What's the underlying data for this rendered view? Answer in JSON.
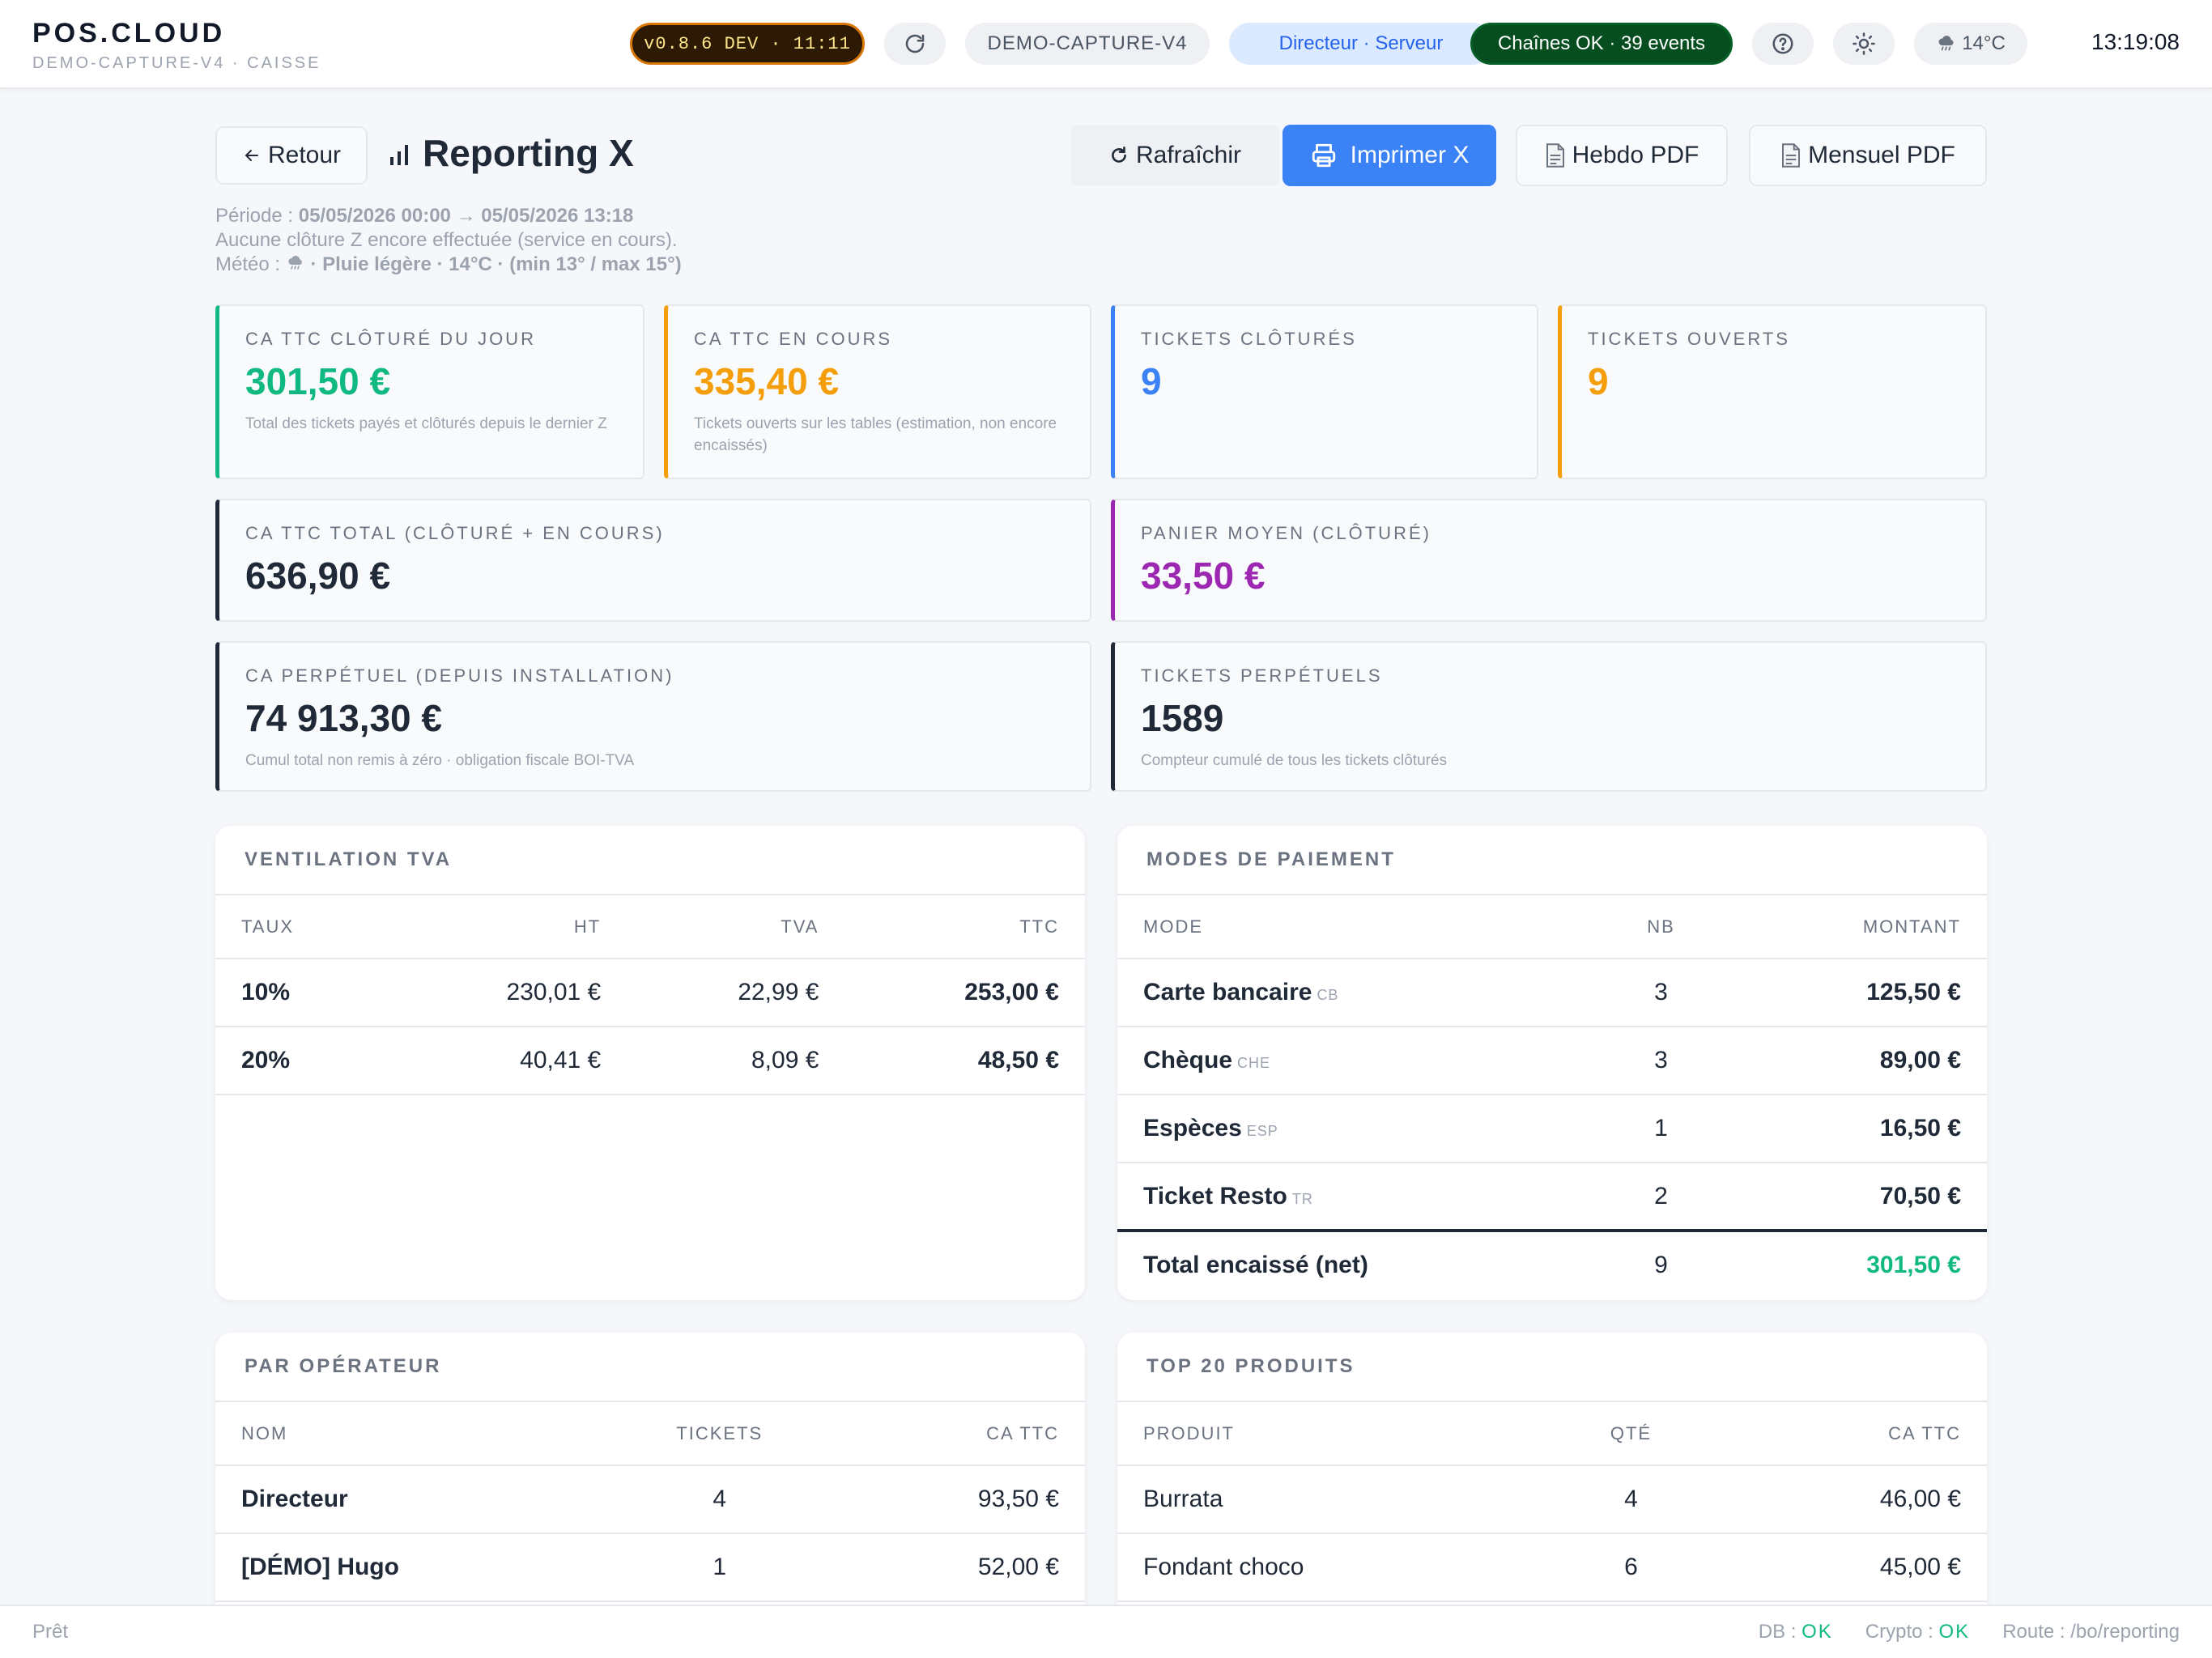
{
  "topbar": {
    "brand_title": "POS.CLOUD",
    "brand_sub": "DEMO-CAPTURE-V4 · CAISSE",
    "version": "v0.8.6 DEV · 11:11",
    "device": "DEMO-CAPTURE-V4",
    "role": "Directeur · Serveur",
    "chains": "Chaînes OK · 39 events",
    "weather": "14°C",
    "clock": "13:19:08"
  },
  "header": {
    "back_label": "Retour",
    "title": "Reporting X",
    "refresh_label": "Rafraîchir",
    "print_label": "Imprimer X",
    "weekly_label": "Hebdo PDF",
    "monthly_label": "Mensuel PDF"
  },
  "meta": {
    "period_label": "Période :",
    "period_value": "05/05/2026 00:00 → 05/05/2026 13:18",
    "closure_note": "Aucune clôture Z encore effectuée (service en cours).",
    "weather_label": "Météo :",
    "weather_value": "Pluie légère · 14°C · (min 13° / max 15°)"
  },
  "colors": {
    "green": "#10b981",
    "orange": "#f59e0b",
    "blue": "#3b82f6",
    "purple": "#9c27b0",
    "dark": "#1f2937"
  },
  "kpis": {
    "closed_ca": {
      "label": "CA TTC CLÔTURÉ DU JOUR",
      "value": "301,50 €",
      "note": "Total des tickets payés et clôturés depuis le dernier Z"
    },
    "open_ca": {
      "label": "CA TTC EN COURS",
      "value": "335,40 €",
      "note": "Tickets ouverts sur les tables (estimation, non encore encaissés)"
    },
    "closed_tickets": {
      "label": "TICKETS CLÔTURÉS",
      "value": "9"
    },
    "open_tickets": {
      "label": "TICKETS OUVERTS",
      "value": "9"
    },
    "total_ca": {
      "label": "CA TTC TOTAL (CLÔTURÉ + EN COURS)",
      "value": "636,90 €"
    },
    "avg_basket": {
      "label": "PANIER MOYEN (CLÔTURÉ)",
      "value": "33,50 €"
    },
    "perpetual_ca": {
      "label": "CA PERPÉTUEL (DEPUIS INSTALLATION)",
      "value": "74 913,30 €",
      "note": "Cumul total non remis à zéro · obligation fiscale BOI-TVA"
    },
    "perpetual_tickets": {
      "label": "TICKETS PERPÉTUELS",
      "value": "1589",
      "note": "Compteur cumulé de tous les tickets clôturés"
    }
  },
  "vat": {
    "title": "VENTILATION TVA",
    "headers": [
      "TAUX",
      "HT",
      "TVA",
      "TTC"
    ],
    "rows": [
      [
        "10%",
        "230,01 €",
        "22,99 €",
        "253,00 €"
      ],
      [
        "20%",
        "40,41 €",
        "8,09 €",
        "48,50 €"
      ]
    ]
  },
  "payments": {
    "title": "MODES DE PAIEMENT",
    "headers": [
      "MODE",
      "NB",
      "MONTANT"
    ],
    "rows": [
      {
        "mode": "Carte bancaire",
        "code": "CB",
        "nb": "3",
        "amount": "125,50 €"
      },
      {
        "mode": "Chèque",
        "code": "CHE",
        "nb": "3",
        "amount": "89,00 €"
      },
      {
        "mode": "Espèces",
        "code": "ESP",
        "nb": "1",
        "amount": "16,50 €"
      },
      {
        "mode": "Ticket Resto",
        "code": "TR",
        "nb": "2",
        "amount": "70,50 €"
      }
    ],
    "total": {
      "label": "Total encaissé (net)",
      "nb": "9",
      "amount": "301,50 €"
    }
  },
  "operators": {
    "title": "PAR OPÉRATEUR",
    "headers": [
      "NOM",
      "TICKETS",
      "CA TTC"
    ],
    "rows": [
      [
        "Directeur",
        "4",
        "93,50 €"
      ],
      [
        "[DÉMO] Hugo",
        "1",
        "52,00 €"
      ]
    ]
  },
  "products": {
    "title": "TOP 20 PRODUITS",
    "headers": [
      "PRODUIT",
      "QTÉ",
      "CA TTC"
    ],
    "rows": [
      [
        "Burrata",
        "4",
        "46,00 €"
      ],
      [
        "Fondant choco",
        "6",
        "45,00 €"
      ]
    ]
  },
  "statusbar": {
    "left": "Prêt",
    "db_label": "DB :",
    "db_value": "OK",
    "crypto_label": "Crypto :",
    "crypto_value": "OK",
    "route": "Route : /bo/reporting"
  }
}
